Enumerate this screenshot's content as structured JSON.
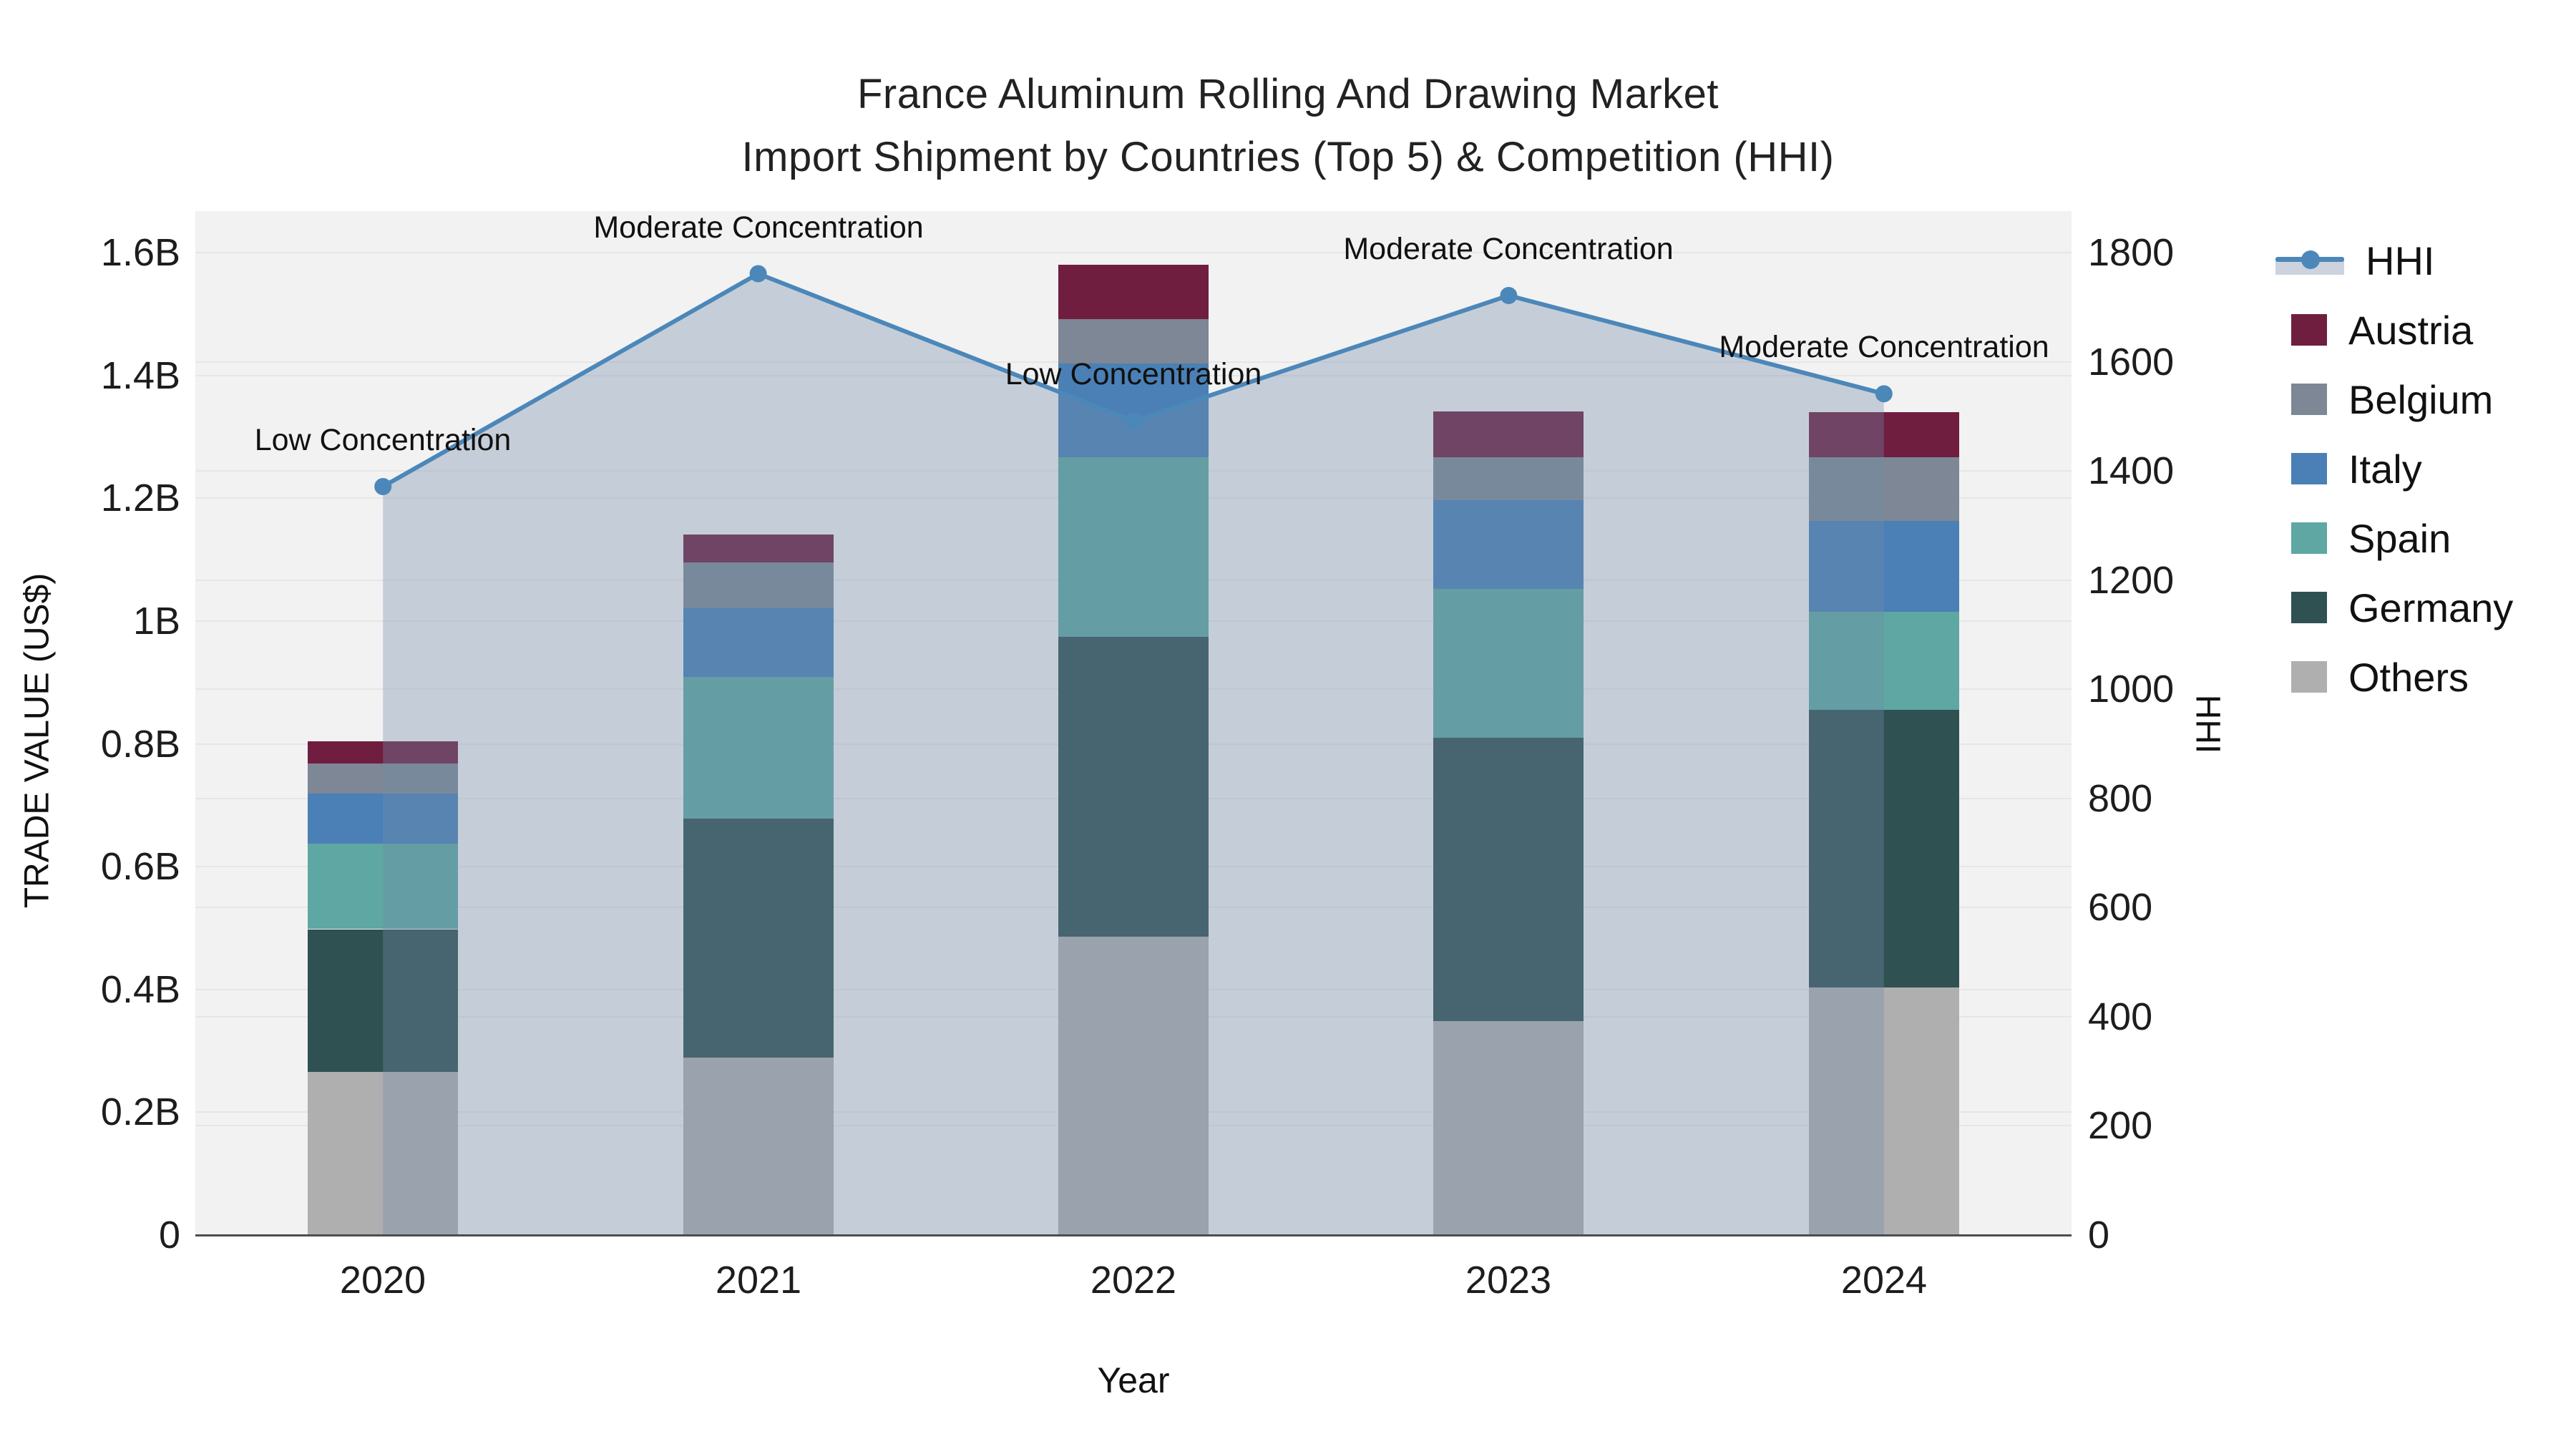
{
  "title": {
    "line1": "France Aluminum Rolling And Drawing Market",
    "line2": "Import Shipment by Countries (Top 5) & Competition (HHI)"
  },
  "axes": {
    "x_title": "Year",
    "y_left_title": "TRADE VALUE (US$)",
    "y_right_title": "HHI",
    "y_left_tick_labels": [
      "0",
      "0.2B",
      "0.4B",
      "0.6B",
      "0.8B",
      "1B",
      "1.2B",
      "1.4B",
      "1.6B"
    ],
    "y_left_tick_values": [
      0,
      0.2,
      0.4,
      0.6,
      0.8,
      1.0,
      1.2,
      1.4,
      1.6
    ],
    "y_left_max": 1.6,
    "y_right_tick_labels": [
      "0",
      "200",
      "400",
      "600",
      "800",
      "1000",
      "1200",
      "1400",
      "1600",
      "1800"
    ],
    "y_right_tick_values": [
      0,
      200,
      400,
      600,
      800,
      1000,
      1200,
      1400,
      1600,
      1800
    ],
    "y_right_max": 1800
  },
  "chart_data": {
    "type": "bar",
    "subtype": "stacked-bars-with-line-overlay",
    "categories": [
      "2020",
      "2021",
      "2022",
      "2023",
      "2024"
    ],
    "unit": "billion US$",
    "stack_order_bottom_to_top": [
      "Others",
      "Germany",
      "Spain",
      "Italy",
      "Belgium",
      "Austria"
    ],
    "series": [
      {
        "name": "Austria",
        "color": "#6F1E3F",
        "values": [
          0.036,
          0.046,
          0.089,
          0.074,
          0.073
        ]
      },
      {
        "name": "Belgium",
        "color": "#7D8795",
        "values": [
          0.049,
          0.074,
          0.072,
          0.07,
          0.104
        ]
      },
      {
        "name": "Italy",
        "color": "#4A80B5",
        "values": [
          0.082,
          0.112,
          0.153,
          0.145,
          0.148
        ]
      },
      {
        "name": "Spain",
        "color": "#5FA7A3",
        "values": [
          0.139,
          0.231,
          0.292,
          0.242,
          0.16
        ]
      },
      {
        "name": "Germany",
        "color": "#2F5152",
        "values": [
          0.232,
          0.389,
          0.488,
          0.462,
          0.452
        ]
      },
      {
        "name": "Others",
        "color": "#AFAFAF",
        "values": [
          0.265,
          0.288,
          0.485,
          0.347,
          0.402
        ]
      }
    ],
    "bar_totals": [
      0.8,
      1.14,
      1.58,
      1.34,
      1.34
    ],
    "hhi": {
      "name": "HHI",
      "line_color": "#4C87B9",
      "fill_color": "rgba(115,140,170,0.35)",
      "values": [
        1370,
        1760,
        1490,
        1720,
        1540
      ],
      "annotations": [
        "Low Concentration",
        "Moderate Concentration",
        "Low Concentration",
        "Moderate Concentration",
        "Moderate Concentration"
      ]
    },
    "legend_order": [
      "HHI",
      "Austria",
      "Belgium",
      "Italy",
      "Spain",
      "Germany",
      "Others"
    ],
    "ylabel_left": "TRADE VALUE (US$)",
    "ylabel_right": "HHI",
    "xlabel": "Year",
    "ylim_left": [
      0,
      1.6
    ],
    "ylim_right": [
      0,
      1800
    ],
    "grid": true,
    "legend_position": "right"
  },
  "style": {
    "plot_bg": "#f2f2f2",
    "grid_color": "#e6e6e6",
    "axis_line_color": "#4d4d4d"
  }
}
